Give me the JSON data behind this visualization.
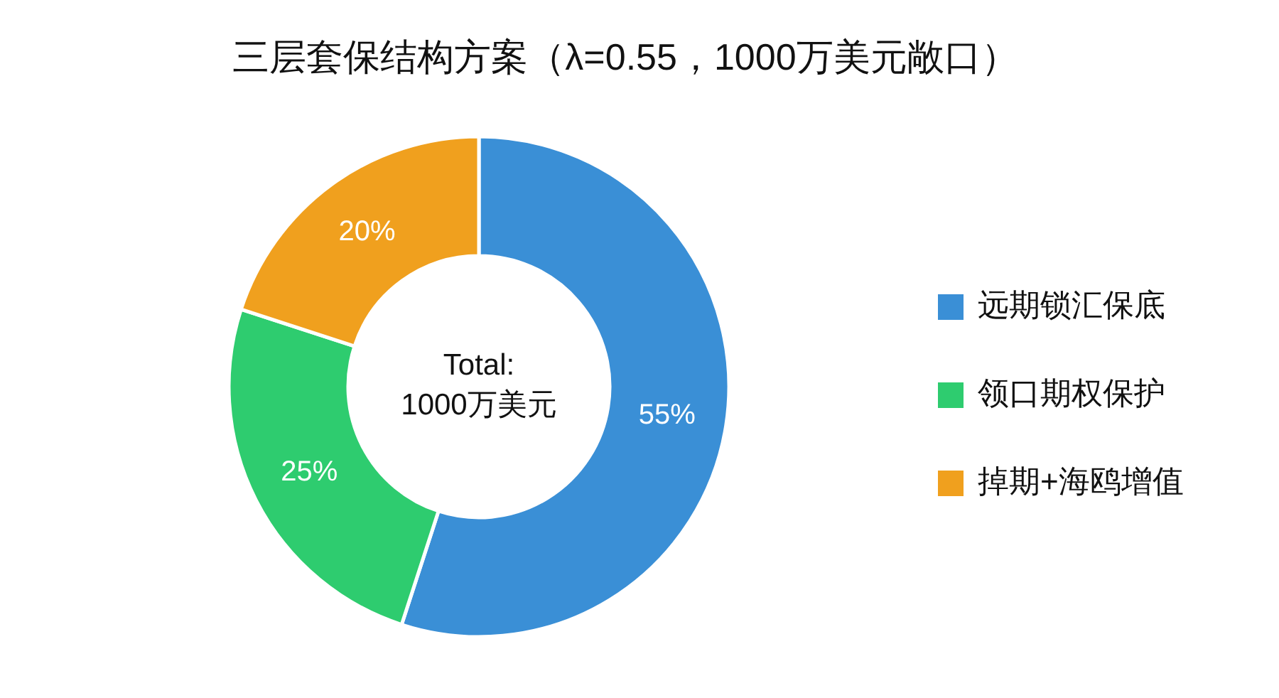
{
  "chart_data": {
    "type": "donut",
    "title": "三层套保结构方案（λ=0.55，1000万美元敞口）",
    "categories": [
      "远期锁汇保底",
      "领口期权保护",
      "掉期+海鸥增值"
    ],
    "values": [
      55,
      25,
      20
    ],
    "colors": [
      "#3a8fd6",
      "#2ecc6f",
      "#f0a01e"
    ],
    "value_labels": [
      "55%",
      "25%",
      "20%"
    ],
    "annotations": [
      "Total:",
      "1000万美元"
    ],
    "legend": "right"
  }
}
